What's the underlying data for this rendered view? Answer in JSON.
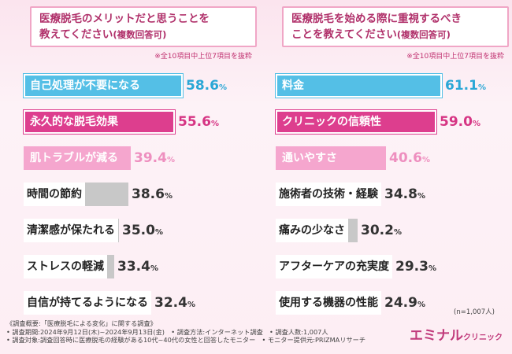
{
  "chart_data": [
    {
      "type": "bar",
      "orientation": "horizontal",
      "title_line1": "医療脱毛のメリットだと思うことを",
      "title_line2": "教えてください",
      "title_suffix": "(複数回答可)",
      "note": "※全10項目中上位7項目を抜粋",
      "categories": [
        "自己処理が不要になる",
        "永久的な脱毛効果",
        "肌トラブルが減る",
        "時間の節約",
        "清潔感が保たれる",
        "ストレスの軽減",
        "自信が持てるようになる"
      ],
      "values": [
        58.6,
        55.6,
        39.4,
        38.6,
        35.0,
        33.4,
        32.4
      ],
      "value_labels": [
        "58.6",
        "55.6",
        "39.4",
        "38.6",
        "35.0",
        "33.4",
        "32.4"
      ],
      "unit": "%",
      "xlim": [
        0,
        100
      ]
    },
    {
      "type": "bar",
      "orientation": "horizontal",
      "title_line1": "医療脱毛を始める際に重視するべき",
      "title_line2": "ことを教えてください",
      "title_suffix": "(複数回答可)",
      "note": "※全10項目中上位7項目を抜粋",
      "categories": [
        "料金",
        "クリニックの信頼性",
        "通いやすさ",
        "施術者の技術・経験",
        "痛みの少なさ",
        "アフターケアの充実度",
        "使用する機器の性能"
      ],
      "values": [
        61.1,
        59.0,
        40.6,
        34.8,
        30.2,
        29.3,
        24.9
      ],
      "value_labels": [
        "61.1",
        "59.0",
        "40.6",
        "34.8",
        "30.2",
        "29.3",
        "24.9"
      ],
      "unit": "%",
      "xlim": [
        0,
        100
      ]
    }
  ],
  "sample_size": "(n=1,007人)",
  "footer": {
    "line1": "《調査概要:「医療脱毛による変化」に関する調査》",
    "line2": "• 調査期間:2024年9月12日(木)~2024年9月13日(金)　• 調査方法:インターネット調査　• 調査人数:1,007人",
    "line3": "• 調査対象:調査回答時に医療脱毛の経験がある10代~40代の女性と回答したモニター　• モニター提供元:PRIZMAリサーチ"
  },
  "brand": {
    "main": "エミナル",
    "sub": "クリニック"
  },
  "colors": {
    "rank1": "#54bfe6",
    "rank2": "#dd3e8e",
    "rank3": "#f5a6ce",
    "other": "#c8c8c8",
    "title": "#b0306a"
  }
}
